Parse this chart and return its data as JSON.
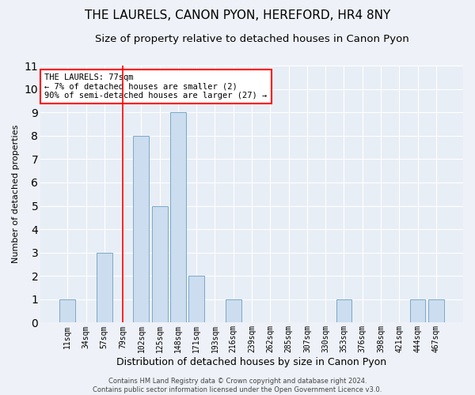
{
  "title": "THE LAURELS, CANON PYON, HEREFORD, HR4 8NY",
  "subtitle": "Size of property relative to detached houses in Canon Pyon",
  "xlabel": "Distribution of detached houses by size in Canon Pyon",
  "ylabel": "Number of detached properties",
  "categories": [
    "11sqm",
    "34sqm",
    "57sqm",
    "79sqm",
    "102sqm",
    "125sqm",
    "148sqm",
    "171sqm",
    "193sqm",
    "216sqm",
    "239sqm",
    "262sqm",
    "285sqm",
    "307sqm",
    "330sqm",
    "353sqm",
    "376sqm",
    "398sqm",
    "421sqm",
    "444sqm",
    "467sqm"
  ],
  "values": [
    1,
    0,
    3,
    0,
    8,
    5,
    9,
    2,
    0,
    1,
    0,
    0,
    0,
    0,
    0,
    1,
    0,
    0,
    0,
    1,
    1
  ],
  "bar_color": "#ccddef",
  "bar_edgecolor": "#7aaac8",
  "red_line_index": 3,
  "ylim": [
    0,
    11
  ],
  "yticks": [
    0,
    1,
    2,
    3,
    4,
    5,
    6,
    7,
    8,
    9,
    10,
    11
  ],
  "annotation_title": "THE LAURELS: 77sqm",
  "annotation_line1": "← 7% of detached houses are smaller (2)",
  "annotation_line2": "90% of semi-detached houses are larger (27) →",
  "footer1": "Contains HM Land Registry data © Crown copyright and database right 2024.",
  "footer2": "Contains public sector information licensed under the Open Government Licence v3.0.",
  "bg_color": "#eef2f8",
  "plot_bg_color": "#e8eef6",
  "grid_color": "#ffffff",
  "title_fontsize": 11,
  "subtitle_fontsize": 9.5,
  "xlabel_fontsize": 9,
  "ylabel_fontsize": 8,
  "tick_fontsize": 7,
  "footer_fontsize": 6,
  "ann_fontsize": 7.5
}
